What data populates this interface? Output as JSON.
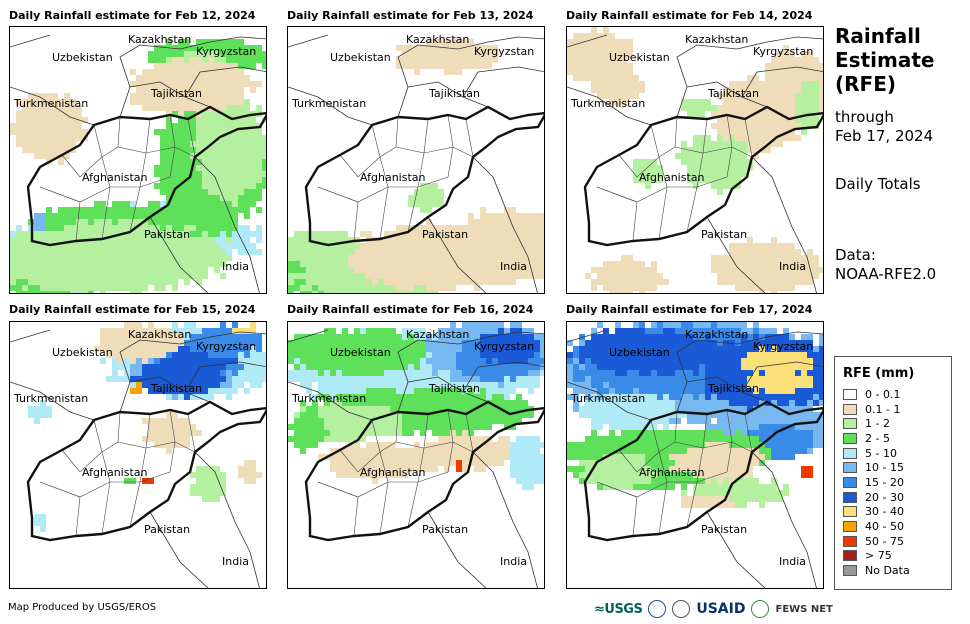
{
  "panels": [
    {
      "title": "Daily Rainfall estimate for Feb 12, 2024",
      "intensity": "moderate-south"
    },
    {
      "title": "Daily Rainfall estimate for Feb 13, 2024",
      "intensity": "light-southwest"
    },
    {
      "title": "Daily Rainfall estimate for Feb 14, 2024",
      "intensity": "light-scattered"
    },
    {
      "title": "Daily Rainfall estimate for Feb 15, 2024",
      "intensity": "heavy-northeast"
    },
    {
      "title": "Daily Rainfall estimate for Feb 16, 2024",
      "intensity": "moderate-north"
    },
    {
      "title": "Daily Rainfall estimate for Feb 17, 2024",
      "intensity": "heavy-north"
    }
  ],
  "map_labels": {
    "kazakhstan": "Kazakhstan",
    "kyrgyzstan": "Kyrgyzstan",
    "uzbekistan": "Uzbekistan",
    "tajikistan": "Tajikistan",
    "turkmenistan": "Turkmenistan",
    "afghanistan": "Afghanistan",
    "pakistan": "Pakistan",
    "india": "India"
  },
  "side": {
    "title_line1": "Rainfall",
    "title_line2": "Estimate",
    "title_line3": "(RFE)",
    "through_line1": "through",
    "through_line2": "Feb 17, 2024",
    "totals": "Daily Totals",
    "data_label": "Data:",
    "data_source": "NOAA-RFE2.0"
  },
  "legend": {
    "title": "RFE (mm)",
    "items": [
      {
        "label": "0 - 0.1",
        "color": "#ffffff"
      },
      {
        "label": "0.1 - 1",
        "color": "#efdcb8"
      },
      {
        "label": "1 - 2",
        "color": "#b4f0a0"
      },
      {
        "label": "2 - 5",
        "color": "#5fe05a"
      },
      {
        "label": "5 - 10",
        "color": "#b0eaf6"
      },
      {
        "label": "10 - 15",
        "color": "#78b8f0"
      },
      {
        "label": "15 - 20",
        "color": "#3a8ae8"
      },
      {
        "label": "20 - 30",
        "color": "#1a5ad6"
      },
      {
        "label": "30 - 40",
        "color": "#fbe07a"
      },
      {
        "label": "40 - 50",
        "color": "#f5a300"
      },
      {
        "label": "50 - 75",
        "color": "#ee3a00"
      },
      {
        "label": "> 75",
        "color": "#a8201a"
      },
      {
        "label": "No Data",
        "color": "#999999"
      }
    ]
  },
  "footer": {
    "credit": "Map Produced by USGS/EROS",
    "logo_usgs": "≈USGS",
    "logo_usaid": "USAID",
    "logo_fews": "FEWS NET"
  }
}
